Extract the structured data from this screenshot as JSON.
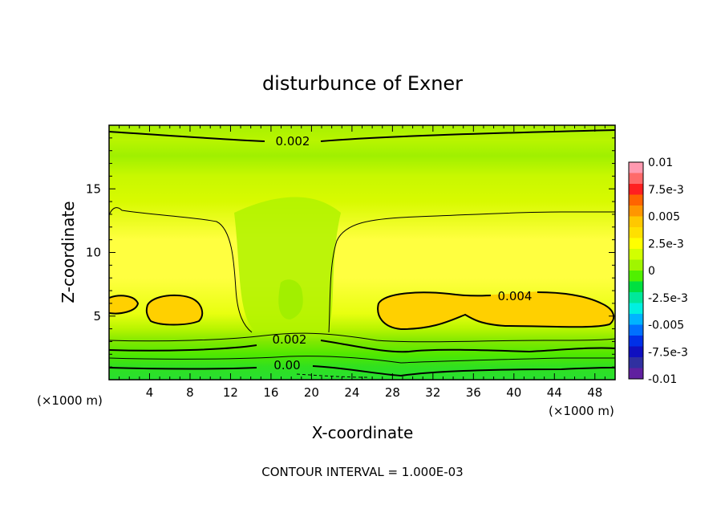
{
  "chart_data": {
    "type": "heatmap",
    "title": "disturbunce of Exner",
    "xlabel": "X-coordinate",
    "ylabel": "Z-coordinate",
    "x_unit_left": "(×1000 m)",
    "x_unit_right": "(×1000 m)",
    "footer": "CONTOUR INTERVAL = 1.000E-03",
    "xlim": [
      0,
      50
    ],
    "ylim": [
      0,
      20
    ],
    "x_ticks": [
      4,
      8,
      12,
      16,
      20,
      24,
      28,
      32,
      36,
      40,
      44,
      48
    ],
    "x_tick_labels": [
      "4",
      "8",
      "12",
      "16",
      "20",
      "24",
      "28",
      "32",
      "36",
      "40",
      "44",
      "48"
    ],
    "y_ticks": [
      5,
      10,
      15
    ],
    "y_tick_labels": [
      "5",
      "10",
      "15"
    ],
    "contour_labels": [
      {
        "text": "0.002",
        "x": 18,
        "y": 18.7
      },
      {
        "text": "0.004",
        "x": 40,
        "y": 6.6
      },
      {
        "text": "0.002",
        "x": 17.5,
        "y": 3.1
      },
      {
        "text": "0.00",
        "x": 17.5,
        "y": 1.0
      }
    ],
    "colorbar": {
      "range": [
        -0.01,
        0.01
      ],
      "tick_values": [
        0.01,
        0.0075,
        0.005,
        0.0025,
        0,
        -0.0025,
        -0.005,
        -0.0075,
        -0.01
      ],
      "tick_labels": [
        "0.01",
        "7.5e-3",
        "0.005",
        "2.5e-3",
        "0",
        "-2.5e-3",
        "-0.005",
        "-7.5e-3",
        "-0.01"
      ],
      "colors": [
        "#ff9ab0",
        "#ff6a6a",
        "#ff2020",
        "#ff6400",
        "#ff9600",
        "#ffc800",
        "#ffe000",
        "#ffff00",
        "#d2ff00",
        "#a0f500",
        "#50f000",
        "#00e040",
        "#00e89a",
        "#00f0e0",
        "#00b4ff",
        "#0070ff",
        "#0030e8",
        "#1010c0",
        "#3030a0",
        "#6020a0"
      ]
    }
  }
}
